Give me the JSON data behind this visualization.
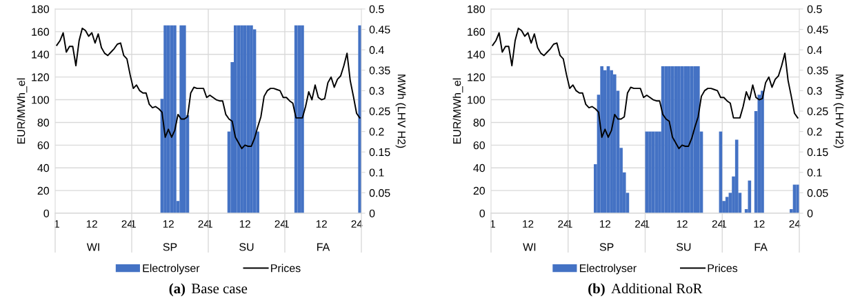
{
  "chart_data": [
    {
      "type": "bar",
      "title": "(a) Base case",
      "ylabel": "EUR/MWh_el",
      "y2label": "MWh (LHV H2)",
      "categories": [
        "1",
        null,
        null,
        null,
        null,
        null,
        null,
        null,
        null,
        null,
        null,
        "12",
        null,
        null,
        null,
        null,
        null,
        null,
        null,
        null,
        null,
        null,
        null,
        "24",
        "1",
        null,
        null,
        null,
        null,
        null,
        null,
        null,
        null,
        null,
        null,
        "12",
        null,
        null,
        null,
        null,
        null,
        null,
        null,
        null,
        null,
        null,
        null,
        "24",
        "1",
        null,
        null,
        null,
        null,
        null,
        null,
        null,
        null,
        null,
        null,
        "12",
        null,
        null,
        null,
        null,
        null,
        null,
        null,
        null,
        null,
        null,
        null,
        "24",
        "1",
        null,
        null,
        null,
        null,
        null,
        null,
        null,
        null,
        null,
        null,
        "12",
        null,
        null,
        null,
        null,
        null,
        null,
        null,
        null,
        null,
        null,
        null,
        "24"
      ],
      "annotations": [
        "WI",
        "SP",
        "SU",
        "FA"
      ],
      "series": [
        {
          "name": "Electrolyser",
          "axis": "y2",
          "color": "#4472c4",
          "values": [
            0,
            0,
            0,
            0,
            0,
            0,
            0,
            0,
            0,
            0,
            0,
            0,
            0,
            0,
            0,
            0,
            0,
            0,
            0,
            0,
            0,
            0,
            0,
            0,
            0,
            0,
            0,
            0,
            0,
            0,
            0,
            0,
            0,
            0.28,
            0.46,
            0.46,
            0.46,
            0.46,
            0.03,
            0.46,
            0.46,
            0.24,
            0,
            0,
            0,
            0,
            0,
            0,
            0,
            0,
            0,
            0,
            0,
            0,
            0.2,
            0.37,
            0.46,
            0.46,
            0.46,
            0.46,
            0.46,
            0.46,
            0.45,
            0.2,
            0,
            0,
            0,
            0,
            0,
            0,
            0,
            0,
            0,
            0,
            0,
            0.46,
            0.46,
            0.46,
            0,
            0,
            0,
            0,
            0,
            0,
            0,
            0,
            0,
            0,
            0,
            0,
            0,
            0,
            0,
            0,
            0,
            0.46
          ]
        },
        {
          "name": "Prices",
          "type": "line",
          "color": "#000000",
          "values": [
            148,
            152,
            159,
            142,
            147,
            147,
            130,
            152,
            163,
            161,
            156,
            159,
            150,
            158,
            146,
            141,
            139,
            142,
            145,
            149,
            150,
            139,
            136,
            122,
            110,
            113,
            108,
            106,
            106,
            96,
            93,
            94,
            92,
            89,
            67,
            74,
            67,
            73,
            87,
            83,
            83,
            85,
            106,
            111,
            110,
            110,
            110,
            102,
            104,
            102,
            100,
            99,
            99,
            87,
            83,
            81,
            67,
            62,
            57,
            60,
            59,
            59,
            66,
            76,
            85,
            103,
            108,
            110,
            110,
            109,
            108,
            102,
            102,
            99,
            97,
            84,
            84,
            84,
            94,
            107,
            100,
            113,
            102,
            100,
            101,
            115,
            120,
            111,
            118,
            121,
            130,
            141,
            117,
            103,
            88,
            84
          ]
        }
      ],
      "ylim": [
        0,
        180
      ],
      "yticks": [
        0,
        20,
        40,
        60,
        80,
        100,
        120,
        140,
        160,
        180
      ],
      "y2lim": [
        0,
        0.5
      ],
      "y2ticks": [
        0,
        0.05,
        0.1,
        0.15,
        0.2,
        0.25,
        0.3,
        0.35,
        0.4,
        0.45,
        0.5
      ],
      "grid": "y",
      "legend": "bottom",
      "line_style": "solid",
      "marker": "none"
    },
    {
      "type": "bar",
      "title": "(b) Additional RoR",
      "ylabel": "EUR/MWh_el",
      "y2label": "MWh (LHV H2)",
      "categories": [
        "1",
        null,
        null,
        null,
        null,
        null,
        null,
        null,
        null,
        null,
        null,
        "12",
        null,
        null,
        null,
        null,
        null,
        null,
        null,
        null,
        null,
        null,
        null,
        "24",
        "1",
        null,
        null,
        null,
        null,
        null,
        null,
        null,
        null,
        null,
        null,
        "12",
        null,
        null,
        null,
        null,
        null,
        null,
        null,
        null,
        null,
        null,
        null,
        "24",
        "1",
        null,
        null,
        null,
        null,
        null,
        null,
        null,
        null,
        null,
        null,
        "12",
        null,
        null,
        null,
        null,
        null,
        null,
        null,
        null,
        null,
        null,
        null,
        "24",
        "1",
        null,
        null,
        null,
        null,
        null,
        null,
        null,
        null,
        null,
        null,
        "12",
        null,
        null,
        null,
        null,
        null,
        null,
        null,
        null,
        null,
        null,
        null,
        "24"
      ],
      "annotations": [
        "WI",
        "SP",
        "SU",
        "FA"
      ],
      "series": [
        {
          "name": "Electrolyser",
          "axis": "y2",
          "color": "#4472c4",
          "values": [
            0,
            0,
            0,
            0,
            0,
            0,
            0,
            0,
            0,
            0,
            0,
            0,
            0,
            0,
            0,
            0,
            0,
            0,
            0,
            0,
            0,
            0,
            0,
            0,
            0,
            0,
            0,
            0,
            0,
            0,
            0,
            0,
            0.12,
            0.29,
            0.36,
            0.35,
            0.36,
            0.35,
            0.34,
            0.3,
            0.16,
            0.1,
            0.05,
            0,
            0,
            0,
            0,
            0,
            0.2,
            0.2,
            0.2,
            0.2,
            0.2,
            0.36,
            0.36,
            0.36,
            0.36,
            0.36,
            0.36,
            0.36,
            0.36,
            0.36,
            0.36,
            0.36,
            0.36,
            0.2,
            0,
            0,
            0,
            0,
            0,
            0.2,
            0.03,
            0.04,
            0.05,
            0.09,
            0.18,
            0.05,
            0,
            0.01,
            0.08,
            0,
            0.25,
            0.29,
            0.3,
            0,
            0,
            0,
            0,
            0,
            0,
            0,
            0,
            0.01,
            0.07,
            0.07
          ]
        },
        {
          "name": "Prices",
          "type": "line",
          "color": "#000000",
          "values": [
            148,
            152,
            159,
            142,
            147,
            147,
            130,
            152,
            163,
            161,
            156,
            159,
            150,
            158,
            146,
            141,
            139,
            142,
            145,
            149,
            150,
            139,
            136,
            122,
            110,
            113,
            108,
            106,
            106,
            96,
            93,
            94,
            92,
            89,
            67,
            74,
            67,
            73,
            87,
            83,
            83,
            85,
            106,
            111,
            110,
            110,
            110,
            102,
            104,
            102,
            100,
            99,
            99,
            87,
            83,
            81,
            67,
            62,
            57,
            60,
            59,
            59,
            66,
            76,
            85,
            103,
            108,
            110,
            110,
            109,
            108,
            102,
            102,
            99,
            97,
            84,
            84,
            84,
            94,
            107,
            100,
            113,
            102,
            100,
            101,
            115,
            120,
            111,
            118,
            121,
            130,
            141,
            117,
            103,
            88,
            84
          ]
        }
      ],
      "ylim": [
        0,
        180
      ],
      "yticks": [
        0,
        20,
        40,
        60,
        80,
        100,
        120,
        140,
        160,
        180
      ],
      "y2lim": [
        0,
        0.5
      ],
      "y2ticks": [
        0,
        0.05,
        0.1,
        0.15,
        0.2,
        0.25,
        0.3,
        0.35,
        0.4,
        0.45,
        0.5
      ],
      "grid": "y",
      "legend": "bottom",
      "line_style": "solid",
      "marker": "none"
    }
  ]
}
